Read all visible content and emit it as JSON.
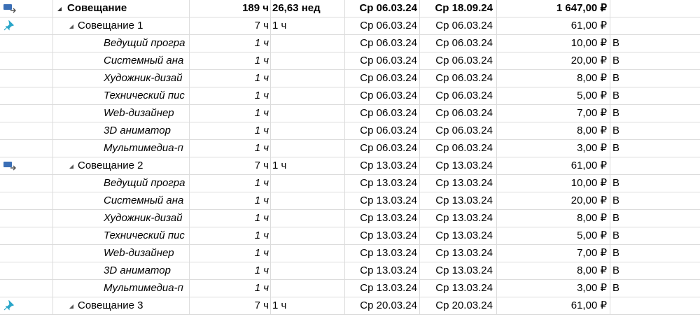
{
  "rows": [
    {
      "type": "summary",
      "icon": "note-arrow-icon",
      "name": "Совещание",
      "work": "189 ч",
      "duration": "26,63 нед",
      "start": "Ср 06.03.24",
      "finish": "Ср 18.09.24",
      "cost": "1 647,00 ₽",
      "extra": ""
    },
    {
      "type": "task",
      "icon": "pin-icon",
      "name": "Совещание 1",
      "work": "7 ч",
      "duration": "1 ч",
      "start": "Ср 06.03.24",
      "finish": "Ср 06.03.24",
      "cost": "61,00 ₽",
      "extra": ""
    },
    {
      "type": "resource",
      "icon": "",
      "name": "Ведущий програ",
      "work": "1 ч",
      "duration": "",
      "start": "Ср 06.03.24",
      "finish": "Ср 06.03.24",
      "cost": "10,00 ₽",
      "extra": "В"
    },
    {
      "type": "resource",
      "icon": "",
      "name": "Системный ана",
      "work": "1 ч",
      "duration": "",
      "start": "Ср 06.03.24",
      "finish": "Ср 06.03.24",
      "cost": "20,00 ₽",
      "extra": "В"
    },
    {
      "type": "resource",
      "icon": "",
      "name": "Художник-дизай",
      "work": "1 ч",
      "duration": "",
      "start": "Ср 06.03.24",
      "finish": "Ср 06.03.24",
      "cost": "8,00 ₽",
      "extra": "В"
    },
    {
      "type": "resource",
      "icon": "",
      "name": "Технический пис",
      "work": "1 ч",
      "duration": "",
      "start": "Ср 06.03.24",
      "finish": "Ср 06.03.24",
      "cost": "5,00 ₽",
      "extra": "В"
    },
    {
      "type": "resource",
      "icon": "",
      "name": "Web-дизайнер",
      "work": "1 ч",
      "duration": "",
      "start": "Ср 06.03.24",
      "finish": "Ср 06.03.24",
      "cost": "7,00 ₽",
      "extra": "В"
    },
    {
      "type": "resource",
      "icon": "",
      "name": "3D аниматор",
      "work": "1 ч",
      "duration": "",
      "start": "Ср 06.03.24",
      "finish": "Ср 06.03.24",
      "cost": "8,00 ₽",
      "extra": "В"
    },
    {
      "type": "resource",
      "icon": "",
      "name": "Мультимедиа-п",
      "work": "1 ч",
      "duration": "",
      "start": "Ср 06.03.24",
      "finish": "Ср 06.03.24",
      "cost": "3,00 ₽",
      "extra": "В"
    },
    {
      "type": "task",
      "icon": "note-arrow-icon",
      "name": "Совещание 2",
      "work": "7 ч",
      "duration": "1 ч",
      "start": "Ср 13.03.24",
      "finish": "Ср 13.03.24",
      "cost": "61,00 ₽",
      "extra": ""
    },
    {
      "type": "resource",
      "icon": "",
      "name": "Ведущий програ",
      "work": "1 ч",
      "duration": "",
      "start": "Ср 13.03.24",
      "finish": "Ср 13.03.24",
      "cost": "10,00 ₽",
      "extra": "В"
    },
    {
      "type": "resource",
      "icon": "",
      "name": "Системный ана",
      "work": "1 ч",
      "duration": "",
      "start": "Ср 13.03.24",
      "finish": "Ср 13.03.24",
      "cost": "20,00 ₽",
      "extra": "В"
    },
    {
      "type": "resource",
      "icon": "",
      "name": "Художник-дизай",
      "work": "1 ч",
      "duration": "",
      "start": "Ср 13.03.24",
      "finish": "Ср 13.03.24",
      "cost": "8,00 ₽",
      "extra": "В"
    },
    {
      "type": "resource",
      "icon": "",
      "name": "Технический пис",
      "work": "1 ч",
      "duration": "",
      "start": "Ср 13.03.24",
      "finish": "Ср 13.03.24",
      "cost": "5,00 ₽",
      "extra": "В"
    },
    {
      "type": "resource",
      "icon": "",
      "name": "Web-дизайнер",
      "work": "1 ч",
      "duration": "",
      "start": "Ср 13.03.24",
      "finish": "Ср 13.03.24",
      "cost": "7,00 ₽",
      "extra": "В"
    },
    {
      "type": "resource",
      "icon": "",
      "name": "3D аниматор",
      "work": "1 ч",
      "duration": "",
      "start": "Ср 13.03.24",
      "finish": "Ср 13.03.24",
      "cost": "8,00 ₽",
      "extra": "В"
    },
    {
      "type": "resource",
      "icon": "",
      "name": "Мультимедиа-п",
      "work": "1 ч",
      "duration": "",
      "start": "Ср 13.03.24",
      "finish": "Ср 13.03.24",
      "cost": "3,00 ₽",
      "extra": "В"
    },
    {
      "type": "task",
      "icon": "pin-icon",
      "name": "Совещание 3",
      "work": "7 ч",
      "duration": "1 ч",
      "start": "Ср 20.03.24",
      "finish": "Ср 20.03.24",
      "cost": "61,00 ₽",
      "extra": ""
    }
  ],
  "colors": {
    "grid_line": "#dcdcdc",
    "note_icon": "#3b6fb6",
    "pin_icon": "#2aa6c9"
  }
}
